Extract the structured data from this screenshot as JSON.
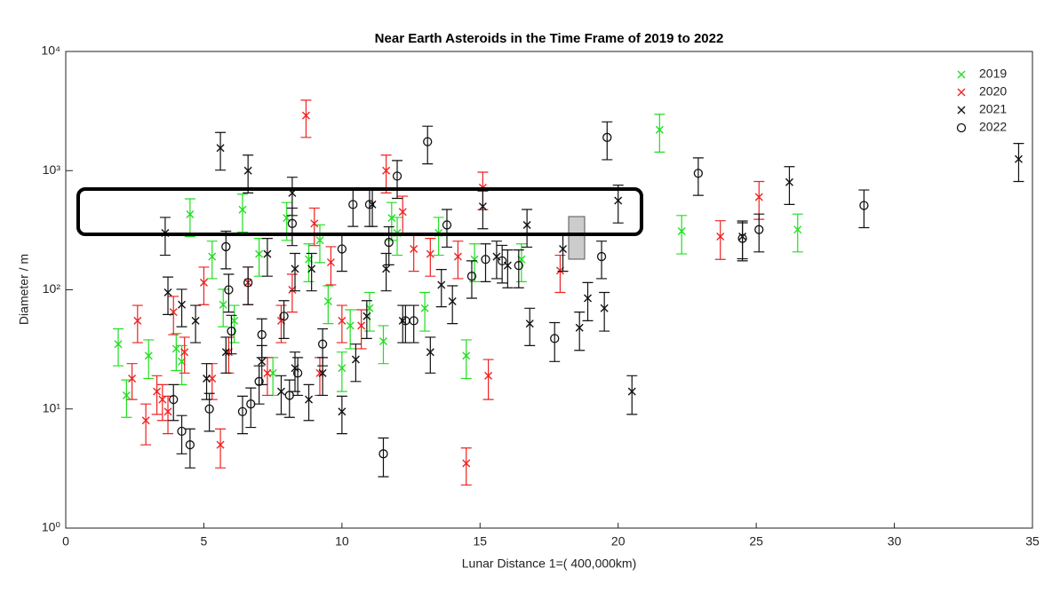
{
  "chart_data": {
    "type": "scatter",
    "title": "Near Earth Asteroids in the Time Frame of 2019 to 2022",
    "xlabel": "Lunar Distance  1=( 400,000km)",
    "ylabel": "Diameter / m",
    "xlim": [
      0,
      35
    ],
    "xticks": [
      0,
      5,
      10,
      15,
      20,
      25,
      30,
      35
    ],
    "ylim": [
      1,
      10000
    ],
    "log_y": true,
    "yticks": [
      {
        "value": 1,
        "label": "10⁰"
      },
      {
        "value": 10,
        "label": "10¹"
      },
      {
        "value": 100,
        "label": "10²"
      },
      {
        "value": 1000,
        "label": "10³"
      },
      {
        "value": 10000,
        "label": "10⁴"
      }
    ],
    "legend": "upper right",
    "series": [
      {
        "name": "2019",
        "color": "#22dd22",
        "marker": "x",
        "x": [
          1.9,
          2.2,
          3.0,
          4.5,
          6.4,
          5.3,
          4.2,
          4.0,
          5.7,
          6.1,
          7.5,
          8.0,
          9.2,
          9.5,
          10.0,
          10.3,
          11.5,
          11.8,
          12.0,
          13.0,
          13.5,
          14.5,
          14.8,
          16.5,
          21.5,
          22.3,
          26.5,
          11.0,
          8.8,
          7.0
        ],
        "values": [
          35,
          13,
          28,
          430,
          470,
          190,
          25,
          32,
          75,
          55,
          20,
          400,
          260,
          80,
          22,
          50,
          37,
          400,
          300,
          70,
          300,
          28,
          180,
          180,
          2200,
          310,
          320,
          70,
          180,
          200
        ],
        "errors": [
          12,
          4.5,
          10,
          150,
          165,
          66,
          9,
          11,
          26,
          19,
          7,
          140,
          91,
          28,
          8,
          18,
          13,
          140,
          105,
          25,
          105,
          10,
          63,
          63,
          770,
          110,
          112,
          25,
          63,
          70
        ]
      },
      {
        "name": "2020",
        "color": "#ee2222",
        "marker": "x",
        "x": [
          2.4,
          2.6,
          2.9,
          3.3,
          3.5,
          3.7,
          3.9,
          4.3,
          5.0,
          5.3,
          5.6,
          5.9,
          6.6,
          7.3,
          7.8,
          8.2,
          8.7,
          9.0,
          9.2,
          9.6,
          10.0,
          10.7,
          11.6,
          12.2,
          13.2,
          14.5,
          15.1,
          15.3,
          14.2,
          17.9,
          23.7,
          25.1,
          12.6
        ],
        "values": [
          18,
          55,
          8,
          14,
          12,
          9.5,
          65,
          30,
          115,
          18,
          5,
          30,
          115,
          20,
          55,
          100,
          2900,
          360,
          20,
          170,
          55,
          50,
          1000,
          450,
          200,
          3.5,
          720,
          19,
          190,
          145,
          280,
          600,
          220
        ],
        "errors": [
          6,
          19,
          3,
          5,
          4,
          3.3,
          23,
          10,
          40,
          6,
          1.8,
          10,
          40,
          7,
          19,
          35,
          1000,
          125,
          7,
          60,
          19,
          18,
          350,
          160,
          70,
          1.2,
          250,
          7,
          66,
          50,
          100,
          210,
          77
        ]
      },
      {
        "name": "2021",
        "color": "#111111",
        "marker": "x",
        "x": [
          3.6,
          3.7,
          4.2,
          4.7,
          5.1,
          5.6,
          5.8,
          6.6,
          7.1,
          7.3,
          7.8,
          8.2,
          8.3,
          8.3,
          8.8,
          8.9,
          9.3,
          10.0,
          10.5,
          10.9,
          11.1,
          11.6,
          12.2,
          13.2,
          13.6,
          14.0,
          15.1,
          15.6,
          16.0,
          16.7,
          16.8,
          18.0,
          18.6,
          18.9,
          19.5,
          20.0,
          20.5,
          24.5,
          26.2,
          34.5
        ],
        "values": [
          300,
          95,
          75,
          55,
          18,
          1550,
          30,
          1000,
          25,
          200,
          14,
          650,
          150,
          22,
          12,
          150,
          20,
          9.5,
          26,
          60,
          520,
          150,
          55,
          30,
          110,
          80,
          500,
          190,
          160,
          350,
          52,
          220,
          48,
          85,
          70,
          560,
          14,
          280,
          800,
          1250
        ],
        "errors": [
          105,
          33,
          26,
          19,
          6,
          540,
          10,
          350,
          9,
          70,
          5,
          230,
          52,
          8,
          4,
          52,
          7,
          3.3,
          9,
          21,
          180,
          52,
          19,
          10,
          38,
          28,
          175,
          66,
          56,
          122,
          18,
          77,
          17,
          30,
          25,
          196,
          5,
          98,
          280,
          440
        ]
      },
      {
        "name": "2022",
        "color": "#111111",
        "marker": "o",
        "x": [
          3.9,
          4.2,
          4.5,
          5.2,
          5.8,
          5.9,
          6.0,
          6.4,
          6.7,
          6.6,
          7.0,
          7.1,
          7.9,
          8.1,
          8.2,
          8.4,
          9.3,
          10.0,
          10.4,
          11.0,
          11.5,
          11.7,
          12.0,
          12.3,
          12.6,
          13.1,
          13.8,
          14.7,
          15.2,
          15.8,
          16.4,
          17.7,
          19.4,
          19.6,
          22.9,
          24.5,
          25.1,
          28.9
        ],
        "values": [
          12,
          6.5,
          5,
          10,
          230,
          100,
          45,
          9.5,
          11,
          115,
          17,
          42,
          60,
          13,
          360,
          20,
          35,
          220,
          520,
          520,
          4.2,
          250,
          900,
          55,
          55,
          1750,
          350,
          130,
          180,
          175,
          160,
          39,
          190,
          1900,
          950,
          270,
          320,
          510
        ],
        "errors": [
          4,
          2.3,
          1.8,
          3.5,
          80,
          35,
          16,
          3.3,
          4,
          40,
          6,
          15,
          21,
          4.5,
          125,
          7,
          12,
          77,
          180,
          180,
          1.5,
          88,
          315,
          19,
          19,
          610,
          122,
          45,
          63,
          61,
          56,
          14,
          66,
          665,
          330,
          95,
          112,
          178
        ]
      }
    ]
  }
}
